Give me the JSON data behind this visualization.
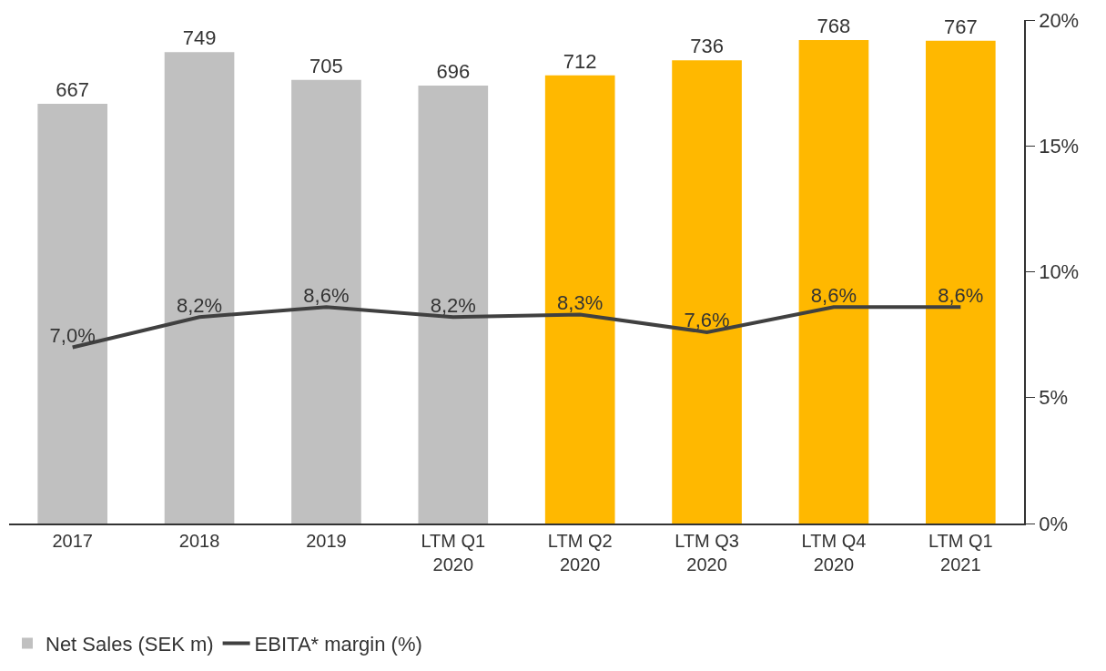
{
  "chart_data": {
    "type": "bar",
    "categories": [
      "2017",
      "2018",
      "2019",
      "LTM Q1\n2020",
      "LTM Q2\n2020",
      "LTM Q3\n2020",
      "LTM Q4\n2020",
      "LTM Q1\n2021"
    ],
    "series": [
      {
        "name": "Net Sales (SEK m)",
        "colors": [
          "#c0c0c0",
          "#c0c0c0",
          "#c0c0c0",
          "#c0c0c0",
          "#ffb800",
          "#ffb800",
          "#ffb800",
          "#ffb800"
        ],
        "values": [
          667,
          749,
          705,
          696,
          712,
          736,
          768,
          767
        ],
        "data_labels": true
      },
      {
        "name": "EBITA* margin (%)",
        "type": "line",
        "axis": "y2",
        "color": "#404040",
        "values": [
          7.0,
          8.2,
          8.6,
          8.2,
          8.3,
          7.6,
          8.6,
          8.6
        ],
        "value_labels": [
          "7,0%",
          "8,2%",
          "8,6%",
          "8,2%",
          "8,3%",
          "7,6%",
          "8,6%",
          "8,6%"
        ]
      }
    ],
    "ylim": [
      0,
      800
    ],
    "y2lim": [
      0,
      20
    ],
    "y2ticks": [
      {
        "value": 0,
        "label": "0%"
      },
      {
        "value": 5,
        "label": "5%"
      },
      {
        "value": 10,
        "label": "10%"
      },
      {
        "value": 15,
        "label": "15%"
      },
      {
        "value": 20,
        "label": "20%"
      }
    ],
    "legend": "bottom left",
    "marker": "none",
    "line_style": "solid"
  }
}
